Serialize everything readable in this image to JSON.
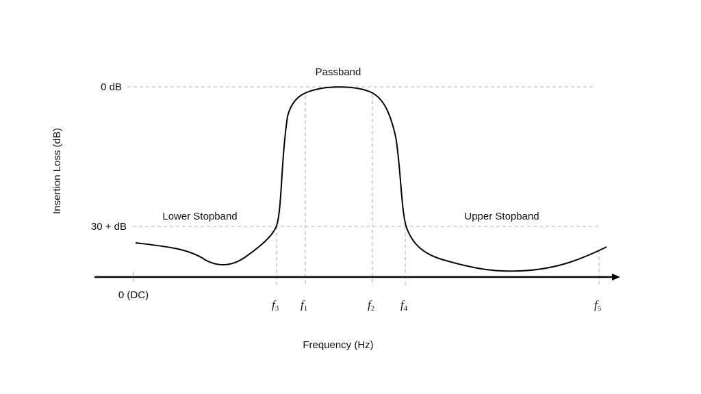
{
  "diagram": {
    "axis_labels": {
      "y": "Insertion Loss (dB)",
      "x": "Frequency (Hz)"
    },
    "y_ticks": {
      "top": "0 dB",
      "bottom": "30 + dB"
    },
    "origin_label": "0 (DC)",
    "regions": {
      "passband": "Passband",
      "lower_stopband": "Lower Stopband",
      "upper_stopband": "Upper Stopband"
    },
    "frequency_marks": [
      {
        "id": "f3",
        "base": "f",
        "sub": "3"
      },
      {
        "id": "f1",
        "base": "f",
        "sub": "1"
      },
      {
        "id": "f2",
        "base": "f",
        "sub": "2"
      },
      {
        "id": "f4",
        "base": "f",
        "sub": "4"
      },
      {
        "id": "f5",
        "base": "f",
        "sub": "5"
      }
    ],
    "colors": {
      "curve": "#000000",
      "guides": "#bdbdbd",
      "axis": "#000000"
    }
  }
}
